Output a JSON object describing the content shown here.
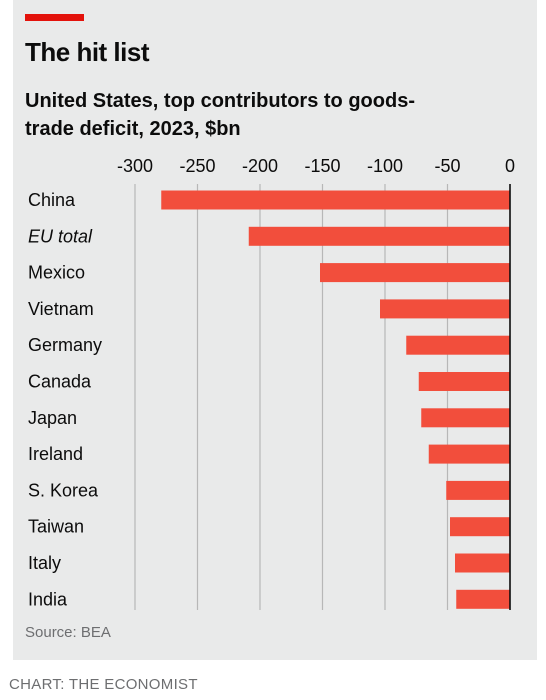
{
  "header": {
    "title": "The hit list",
    "subtitle": "United States, top contributors to goods-trade deficit, 2023, $bn"
  },
  "footer": {
    "source": "Source: BEA",
    "credit": "CHART: THE ECONOMIST"
  },
  "colors": {
    "accent": "#e3120b",
    "bar": "#f24e3c",
    "background": "#e9eaea",
    "grid": "#b7b7b7",
    "zero_line": "#0c0c0c"
  },
  "chart_data": {
    "type": "bar",
    "orientation": "horizontal",
    "title": "The hit list",
    "subtitle": "United States, top contributors to goods-trade deficit, 2023, $bn",
    "categories": [
      "China",
      "EU total",
      "Mexico",
      "Vietnam",
      "Germany",
      "Canada",
      "Japan",
      "Ireland",
      "S. Korea",
      "Taiwan",
      "Italy",
      "India"
    ],
    "italic_categories": [
      "EU total"
    ],
    "values": [
      -279,
      -209,
      -152,
      -104,
      -83,
      -73,
      -71,
      -65,
      -51,
      -48,
      -44,
      -43
    ],
    "xticks": [
      "-300",
      "-250",
      "-200",
      "-150",
      "-100",
      "-50",
      "0"
    ],
    "xlim": [
      -300,
      0
    ],
    "grid": true,
    "axis_position": "top",
    "source": "Source: BEA"
  }
}
